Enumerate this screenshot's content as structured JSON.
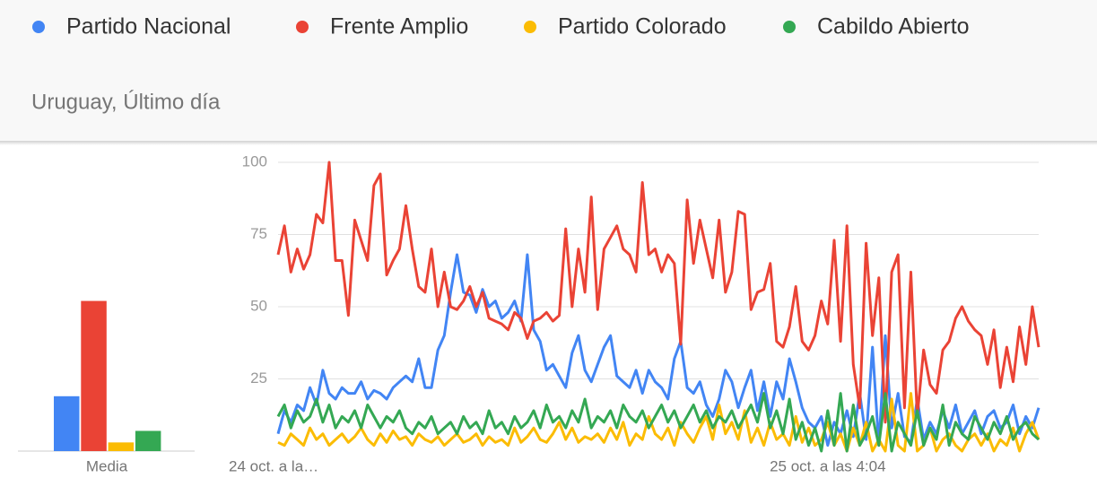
{
  "chart_data": [
    {
      "type": "bar",
      "label": "Media",
      "values": [
        19,
        52,
        3,
        7
      ],
      "ylim": [
        0,
        100
      ]
    },
    {
      "type": "line",
      "subtitle": "Uruguay, Último día",
      "categories": [
        "24 oct. a la…",
        null,
        null,
        null,
        null,
        null,
        null,
        null,
        null,
        null,
        null,
        null,
        null,
        null,
        null,
        null,
        null,
        null,
        null,
        null,
        null,
        null,
        null,
        null,
        null,
        null,
        null,
        null,
        null,
        null,
        null,
        null,
        null,
        null,
        null,
        null,
        null,
        null,
        null,
        null,
        null,
        null,
        null,
        null,
        null,
        null,
        null,
        null,
        null,
        null,
        null,
        null,
        null,
        null,
        null,
        null,
        null,
        null,
        null,
        null,
        null,
        null,
        null,
        null,
        null,
        null,
        null,
        null,
        null,
        null,
        null,
        null,
        null,
        null,
        null,
        null,
        null,
        null,
        null,
        null,
        null,
        null,
        null,
        null,
        null,
        null,
        "25 oct. a las 4:04",
        null,
        null,
        null,
        null,
        null,
        null,
        null,
        null,
        null,
        null,
        null,
        null,
        null,
        null,
        null,
        null,
        null,
        null,
        null,
        null,
        null,
        null,
        null,
        null,
        null,
        null,
        null,
        null,
        null,
        null,
        null,
        null,
        null
      ],
      "ylim": [
        0,
        100
      ],
      "yticks": [
        25,
        50,
        75,
        100
      ],
      "grid": true,
      "series": [
        {
          "name": "Partido Nacional",
          "color": "#4285f4",
          "values": [
            6,
            14,
            10,
            16,
            14,
            22,
            16,
            28,
            20,
            18,
            22,
            20,
            20,
            24,
            18,
            21,
            20,
            18,
            22,
            24,
            26,
            24,
            32,
            22,
            22,
            35,
            40,
            55,
            68,
            55,
            54,
            48,
            56,
            50,
            52,
            46,
            48,
            52,
            45,
            68,
            42,
            38,
            28,
            30,
            26,
            22,
            34,
            40,
            28,
            24,
            30,
            36,
            40,
            26,
            24,
            22,
            28,
            20,
            28,
            24,
            22,
            18,
            32,
            38,
            22,
            20,
            24,
            16,
            12,
            18,
            28,
            24,
            15,
            22,
            28,
            14,
            24,
            12,
            24,
            18,
            32,
            24,
            15,
            10,
            8,
            12,
            2,
            10,
            6,
            14,
            5,
            20,
            4,
            36,
            2,
            40,
            8,
            20,
            5,
            3,
            18,
            4,
            10,
            6,
            14,
            8,
            16,
            6,
            10,
            14,
            6,
            12,
            14,
            8,
            10,
            16,
            6,
            12,
            8,
            15
          ]
        },
        {
          "name": "Frente Amplio",
          "color": "#ea4335",
          "values": [
            68,
            78,
            62,
            70,
            63,
            68,
            82,
            79,
            100,
            66,
            66,
            47,
            80,
            73,
            66,
            92,
            96,
            61,
            66,
            70,
            85,
            70,
            57,
            55,
            70,
            50,
            62,
            50,
            49,
            52,
            57,
            50,
            55,
            46,
            45,
            44,
            42,
            48,
            46,
            39,
            45,
            46,
            48,
            45,
            47,
            77,
            50,
            70,
            55,
            88,
            49,
            70,
            74,
            78,
            70,
            68,
            62,
            93,
            68,
            70,
            62,
            68,
            65,
            37,
            87,
            65,
            80,
            70,
            60,
            80,
            55,
            62,
            83,
            82,
            49,
            55,
            56,
            65,
            38,
            36,
            43,
            57,
            38,
            35,
            40,
            52,
            44,
            73,
            38,
            78,
            30,
            15,
            72,
            40,
            60,
            10,
            62,
            68,
            15,
            62,
            12,
            35,
            23,
            20,
            35,
            38,
            46,
            50,
            45,
            42,
            40,
            30,
            42,
            22,
            36,
            24,
            43,
            30,
            50,
            36
          ]
        },
        {
          "name": "Partido Colorado",
          "color": "#fbbc04",
          "values": [
            3,
            2,
            6,
            4,
            2,
            8,
            4,
            6,
            2,
            4,
            6,
            3,
            5,
            8,
            4,
            2,
            6,
            3,
            7,
            4,
            5,
            2,
            6,
            4,
            3,
            5,
            2,
            4,
            6,
            3,
            4,
            6,
            2,
            5,
            3,
            4,
            2,
            8,
            3,
            5,
            8,
            4,
            3,
            6,
            10,
            4,
            8,
            3,
            5,
            4,
            6,
            3,
            8,
            4,
            10,
            2,
            6,
            4,
            12,
            6,
            4,
            8,
            2,
            10,
            6,
            3,
            8,
            12,
            4,
            16,
            6,
            10,
            4,
            14,
            3,
            8,
            2,
            10,
            4,
            6,
            2,
            12,
            3,
            8,
            2,
            4,
            10,
            2,
            6,
            0,
            8,
            2,
            10,
            0,
            4,
            0,
            18,
            2,
            0,
            20,
            0,
            2,
            8,
            0,
            4,
            6,
            2,
            0,
            4,
            6,
            2,
            6,
            0,
            4,
            2,
            8,
            0,
            6,
            10,
            4
          ]
        },
        {
          "name": "Cabildo Abierto",
          "color": "#34a853",
          "values": [
            12,
            16,
            8,
            14,
            10,
            12,
            18,
            10,
            16,
            8,
            12,
            10,
            14,
            8,
            16,
            12,
            8,
            12,
            10,
            14,
            8,
            6,
            10,
            8,
            12,
            6,
            8,
            10,
            6,
            12,
            8,
            10,
            6,
            14,
            8,
            10,
            6,
            12,
            8,
            10,
            14,
            8,
            16,
            10,
            12,
            8,
            14,
            10,
            18,
            8,
            12,
            10,
            14,
            8,
            16,
            12,
            10,
            14,
            8,
            12,
            16,
            10,
            14,
            8,
            12,
            16,
            10,
            14,
            8,
            12,
            10,
            14,
            8,
            12,
            16,
            10,
            20,
            8,
            14,
            6,
            18,
            4,
            10,
            2,
            8,
            0,
            14,
            2,
            20,
            0,
            16,
            2,
            6,
            12,
            2,
            20,
            0,
            10,
            6,
            2,
            14,
            2,
            8,
            4,
            16,
            2,
            10,
            6,
            4,
            12,
            8,
            4,
            10,
            6,
            12,
            4,
            8,
            10,
            6,
            4
          ]
        }
      ]
    }
  ]
}
